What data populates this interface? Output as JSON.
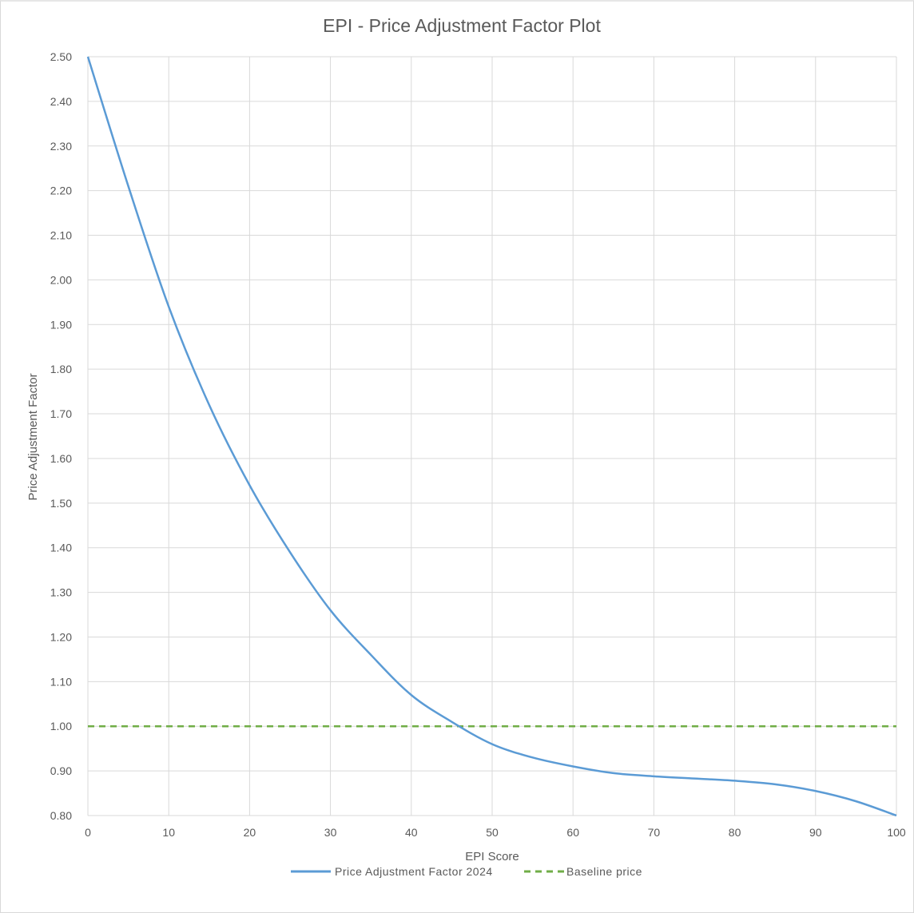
{
  "chart_data": {
    "type": "line",
    "title": "EPI - Price Adjustment Factor Plot",
    "xlabel": "EPI Score",
    "ylabel": "Price Adjustment Factor",
    "xlim": [
      0,
      100
    ],
    "ylim": [
      0.8,
      2.5
    ],
    "x_ticks": [
      "0",
      "10",
      "20",
      "30",
      "40",
      "50",
      "60",
      "70",
      "80",
      "90",
      "100"
    ],
    "y_ticks": [
      "0.80",
      "0.90",
      "1.00",
      "1.10",
      "1.20",
      "1.30",
      "1.40",
      "1.50",
      "1.60",
      "1.70",
      "1.80",
      "1.90",
      "2.00",
      "2.10",
      "2.20",
      "2.30",
      "2.40",
      "2.50"
    ],
    "grid": true,
    "legend_position": "bottom",
    "series": [
      {
        "name": "Price Adjustment Factor 2024",
        "color": "#5b9bd5",
        "style": "solid",
        "x": [
          0,
          5,
          10,
          15,
          20,
          25,
          30,
          35,
          40,
          45,
          50,
          55,
          60,
          65,
          70,
          75,
          80,
          85,
          90,
          95,
          100
        ],
        "y": [
          2.5,
          2.21,
          1.94,
          1.72,
          1.54,
          1.39,
          1.26,
          1.16,
          1.07,
          1.01,
          0.96,
          0.93,
          0.91,
          0.895,
          0.888,
          0.883,
          0.878,
          0.87,
          0.855,
          0.832,
          0.8
        ]
      },
      {
        "name": "Baseline price",
        "color": "#70ad47",
        "style": "dashed",
        "x": [
          0,
          100
        ],
        "y": [
          1.0,
          1.0
        ]
      }
    ]
  }
}
